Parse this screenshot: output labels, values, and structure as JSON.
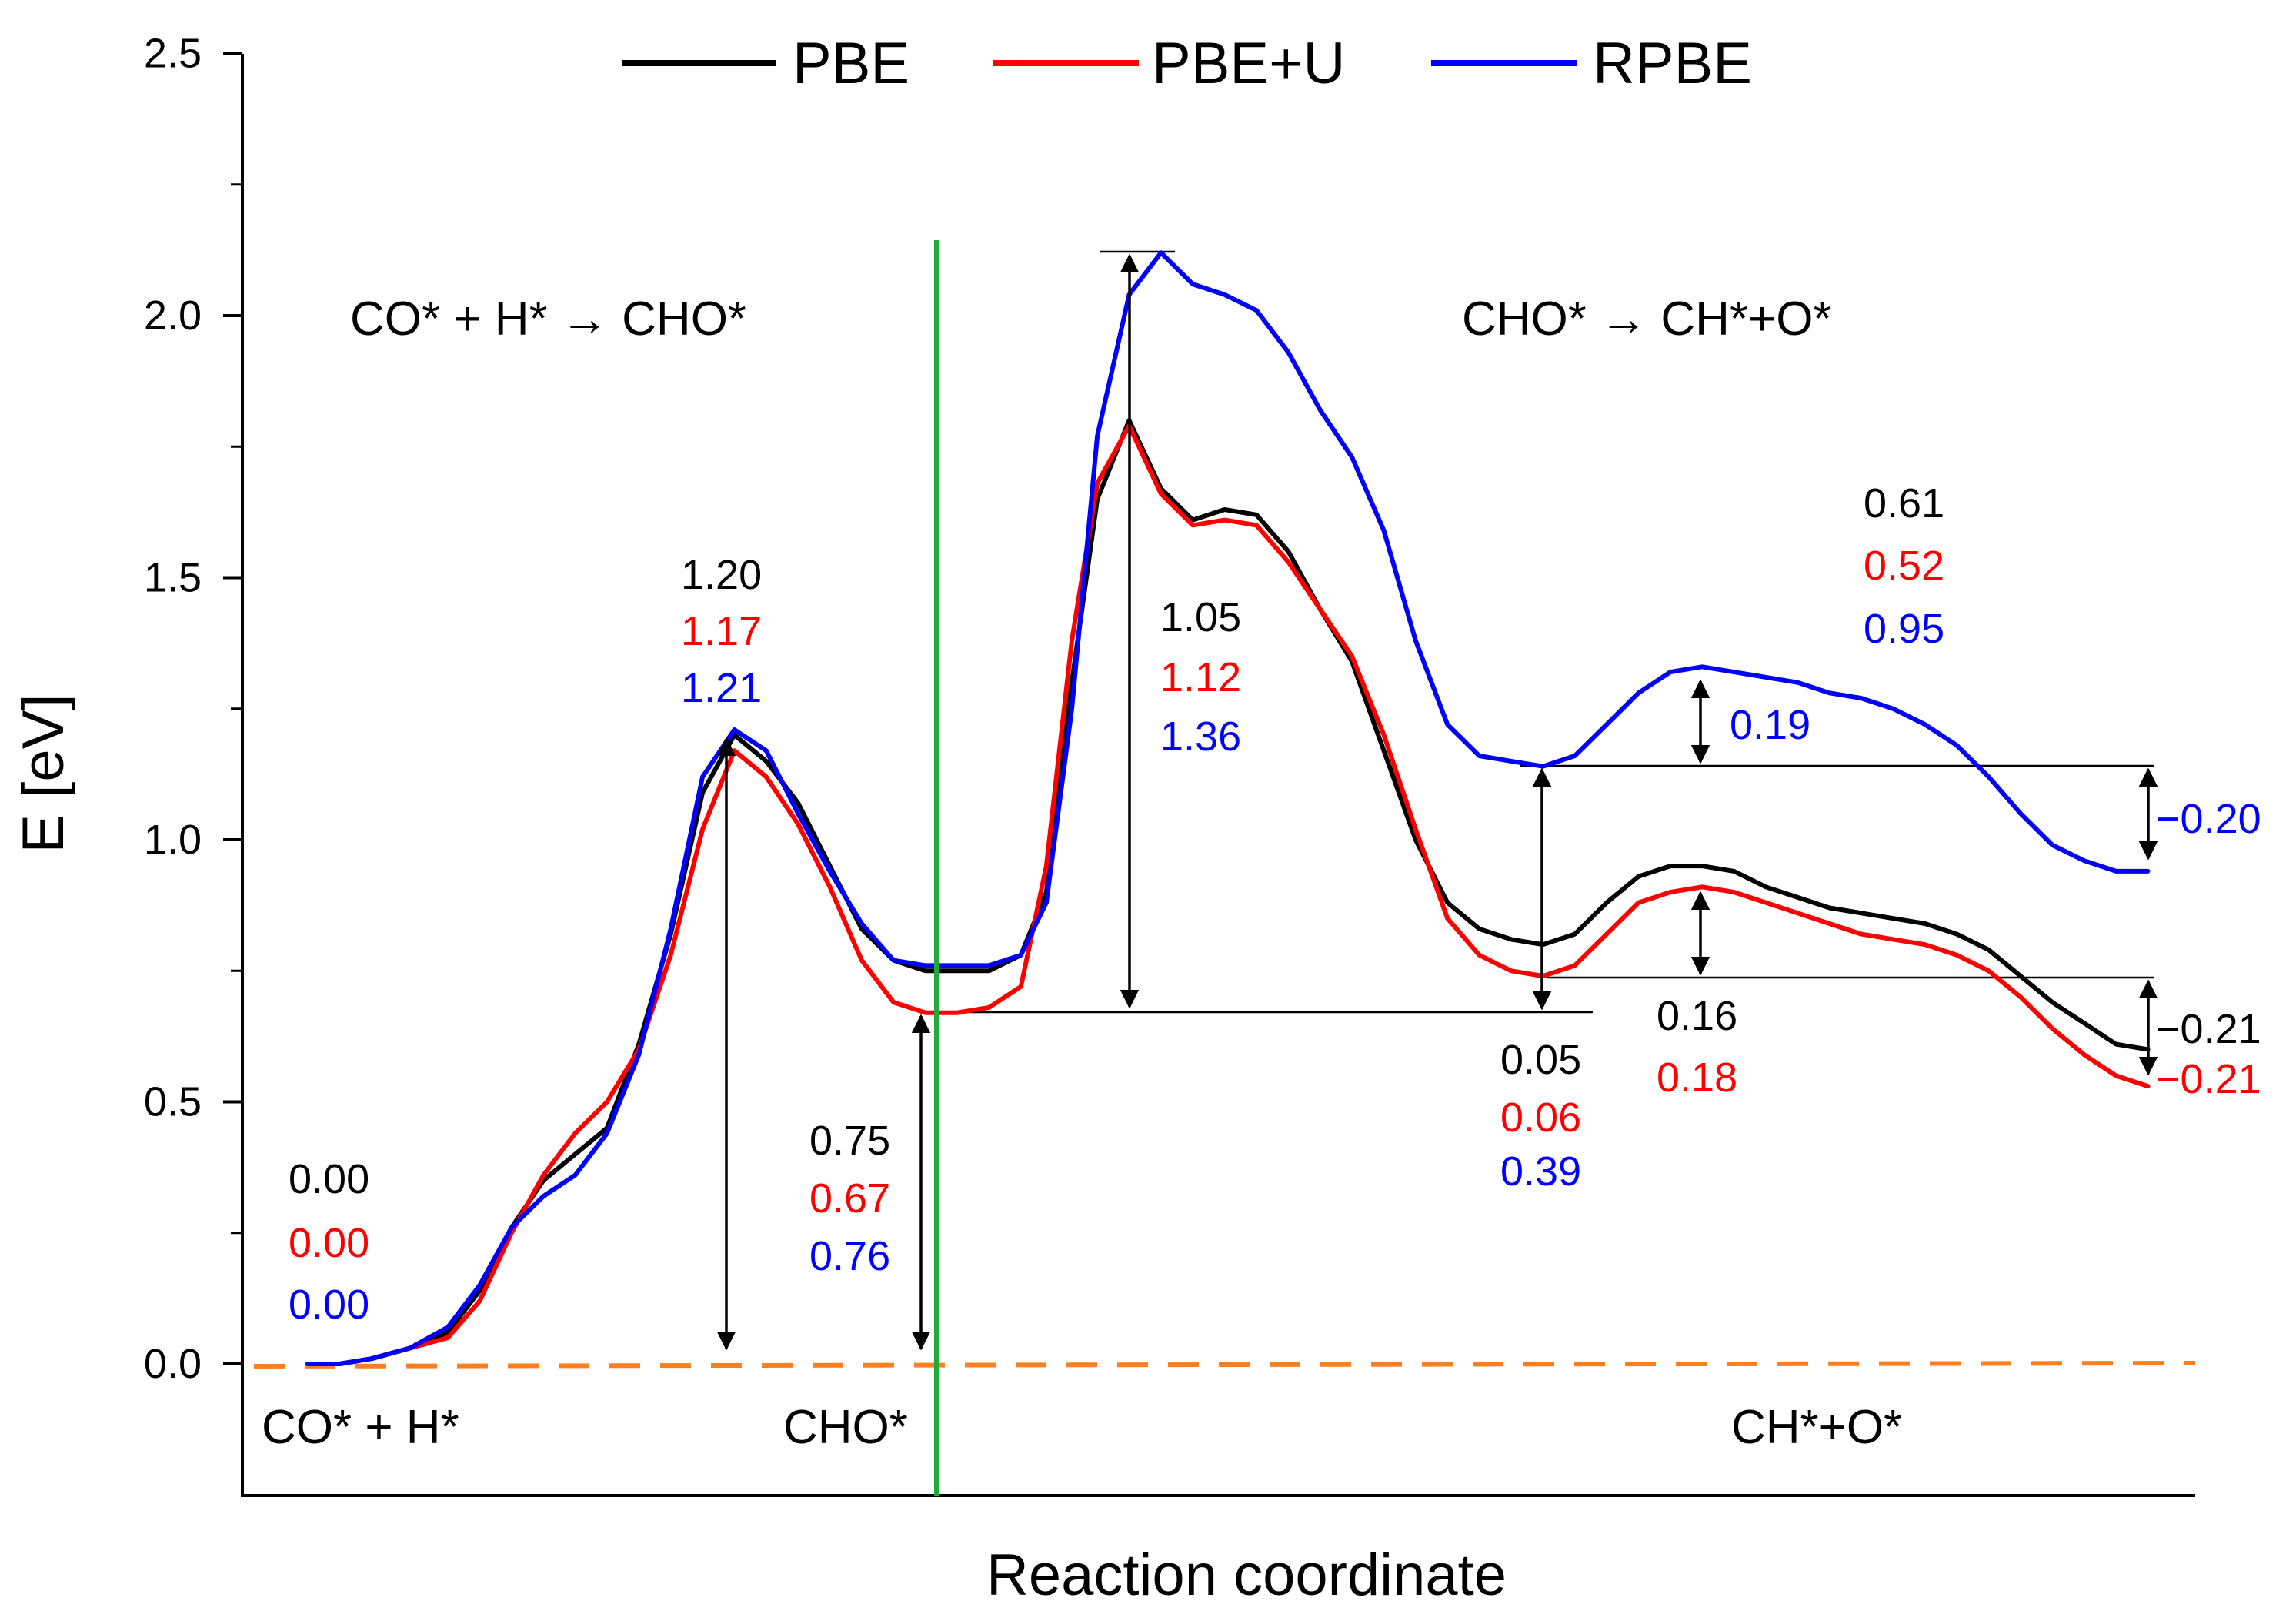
{
  "chart_data": {
    "type": "line",
    "xlabel": "Reaction coordinate",
    "ylabel": "E [eV]",
    "ylim": [
      0,
      2.5
    ],
    "y_ticks": [
      "0.0",
      "0.5",
      "1.0",
      "1.5",
      "2.0",
      "2.5"
    ],
    "legend_position": "top",
    "colors": {
      "PBE": "#000000",
      "PBE+U": "#ff0000",
      "RPBE": "#0000ff",
      "divider": "#1faa3c",
      "zero_line": "#ff7f1e"
    },
    "series": [
      {
        "name": "PBE",
        "color": "#000000",
        "points": [
          [
            0.0,
            0.0
          ],
          [
            0.25,
            0.0
          ],
          [
            0.5,
            0.01
          ],
          [
            0.8,
            0.03
          ],
          [
            1.1,
            0.06
          ],
          [
            1.35,
            0.14
          ],
          [
            1.6,
            0.26
          ],
          [
            1.85,
            0.35
          ],
          [
            2.1,
            0.4
          ],
          [
            2.35,
            0.45
          ],
          [
            2.6,
            0.61
          ],
          [
            2.85,
            0.82
          ],
          [
            3.1,
            1.09
          ],
          [
            3.35,
            1.2
          ],
          [
            3.6,
            1.15
          ],
          [
            3.85,
            1.07
          ],
          [
            4.1,
            0.95
          ],
          [
            4.35,
            0.83
          ],
          [
            4.6,
            0.77
          ],
          [
            4.85,
            0.75
          ],
          [
            5.1,
            0.75
          ],
          [
            5.35,
            0.75
          ],
          [
            5.6,
            0.78
          ],
          [
            5.8,
            0.9
          ],
          [
            6.0,
            1.3
          ],
          [
            6.2,
            1.65
          ],
          [
            6.45,
            1.8
          ],
          [
            6.7,
            1.67
          ],
          [
            6.95,
            1.61
          ],
          [
            7.2,
            1.63
          ],
          [
            7.45,
            1.62
          ],
          [
            7.7,
            1.55
          ],
          [
            7.95,
            1.44
          ],
          [
            8.2,
            1.34
          ],
          [
            8.45,
            1.17
          ],
          [
            8.7,
            1.0
          ],
          [
            8.95,
            0.88
          ],
          [
            9.2,
            0.83
          ],
          [
            9.45,
            0.81
          ],
          [
            9.7,
            0.8
          ],
          [
            9.95,
            0.82
          ],
          [
            10.2,
            0.88
          ],
          [
            10.45,
            0.93
          ],
          [
            10.7,
            0.95
          ],
          [
            10.95,
            0.95
          ],
          [
            11.2,
            0.94
          ],
          [
            11.45,
            0.91
          ],
          [
            11.7,
            0.89
          ],
          [
            11.95,
            0.87
          ],
          [
            12.2,
            0.86
          ],
          [
            12.45,
            0.85
          ],
          [
            12.7,
            0.84
          ],
          [
            12.95,
            0.82
          ],
          [
            13.2,
            0.79
          ],
          [
            13.45,
            0.74
          ],
          [
            13.7,
            0.69
          ],
          [
            13.95,
            0.65
          ],
          [
            14.2,
            0.61
          ],
          [
            14.45,
            0.6
          ]
        ]
      },
      {
        "name": "PBE+U",
        "color": "#ff0000",
        "points": [
          [
            0.0,
            0.0
          ],
          [
            0.25,
            0.0
          ],
          [
            0.5,
            0.01
          ],
          [
            0.8,
            0.03
          ],
          [
            1.1,
            0.05
          ],
          [
            1.35,
            0.12
          ],
          [
            1.6,
            0.25
          ],
          [
            1.85,
            0.36
          ],
          [
            2.1,
            0.44
          ],
          [
            2.35,
            0.5
          ],
          [
            2.6,
            0.6
          ],
          [
            2.85,
            0.78
          ],
          [
            3.1,
            1.02
          ],
          [
            3.35,
            1.17
          ],
          [
            3.6,
            1.12
          ],
          [
            3.85,
            1.03
          ],
          [
            4.1,
            0.91
          ],
          [
            4.35,
            0.77
          ],
          [
            4.6,
            0.69
          ],
          [
            4.85,
            0.67
          ],
          [
            5.1,
            0.67
          ],
          [
            5.35,
            0.68
          ],
          [
            5.6,
            0.72
          ],
          [
            5.8,
            0.95
          ],
          [
            6.0,
            1.38
          ],
          [
            6.2,
            1.68
          ],
          [
            6.45,
            1.79
          ],
          [
            6.7,
            1.66
          ],
          [
            6.95,
            1.6
          ],
          [
            7.2,
            1.61
          ],
          [
            7.45,
            1.6
          ],
          [
            7.7,
            1.53
          ],
          [
            7.95,
            1.44
          ],
          [
            8.2,
            1.35
          ],
          [
            8.45,
            1.2
          ],
          [
            8.7,
            1.02
          ],
          [
            8.95,
            0.85
          ],
          [
            9.2,
            0.78
          ],
          [
            9.45,
            0.75
          ],
          [
            9.7,
            0.74
          ],
          [
            9.95,
            0.76
          ],
          [
            10.2,
            0.82
          ],
          [
            10.45,
            0.88
          ],
          [
            10.7,
            0.9
          ],
          [
            10.95,
            0.91
          ],
          [
            11.2,
            0.9
          ],
          [
            11.45,
            0.88
          ],
          [
            11.7,
            0.86
          ],
          [
            11.95,
            0.84
          ],
          [
            12.2,
            0.82
          ],
          [
            12.45,
            0.81
          ],
          [
            12.7,
            0.8
          ],
          [
            12.95,
            0.78
          ],
          [
            13.2,
            0.75
          ],
          [
            13.45,
            0.7
          ],
          [
            13.7,
            0.64
          ],
          [
            13.95,
            0.59
          ],
          [
            14.2,
            0.55
          ],
          [
            14.45,
            0.53
          ]
        ]
      },
      {
        "name": "RPBE",
        "color": "#0000ff",
        "points": [
          [
            0.0,
            0.0
          ],
          [
            0.25,
            0.0
          ],
          [
            0.5,
            0.01
          ],
          [
            0.8,
            0.03
          ],
          [
            1.1,
            0.07
          ],
          [
            1.35,
            0.15
          ],
          [
            1.6,
            0.26
          ],
          [
            1.85,
            0.32
          ],
          [
            2.1,
            0.36
          ],
          [
            2.35,
            0.44
          ],
          [
            2.6,
            0.59
          ],
          [
            2.85,
            0.83
          ],
          [
            3.1,
            1.12
          ],
          [
            3.35,
            1.21
          ],
          [
            3.6,
            1.17
          ],
          [
            3.85,
            1.05
          ],
          [
            4.1,
            0.94
          ],
          [
            4.35,
            0.84
          ],
          [
            4.6,
            0.77
          ],
          [
            4.85,
            0.76
          ],
          [
            5.1,
            0.76
          ],
          [
            5.35,
            0.76
          ],
          [
            5.6,
            0.78
          ],
          [
            5.8,
            0.88
          ],
          [
            6.0,
            1.25
          ],
          [
            6.2,
            1.77
          ],
          [
            6.45,
            2.04
          ],
          [
            6.7,
            2.12
          ],
          [
            6.95,
            2.06
          ],
          [
            7.2,
            2.04
          ],
          [
            7.45,
            2.01
          ],
          [
            7.7,
            1.93
          ],
          [
            7.95,
            1.82
          ],
          [
            8.2,
            1.73
          ],
          [
            8.45,
            1.59
          ],
          [
            8.7,
            1.38
          ],
          [
            8.95,
            1.22
          ],
          [
            9.2,
            1.16
          ],
          [
            9.45,
            1.15
          ],
          [
            9.7,
            1.14
          ],
          [
            9.95,
            1.16
          ],
          [
            10.2,
            1.22
          ],
          [
            10.45,
            1.28
          ],
          [
            10.7,
            1.32
          ],
          [
            10.95,
            1.33
          ],
          [
            11.2,
            1.32
          ],
          [
            11.45,
            1.31
          ],
          [
            11.7,
            1.3
          ],
          [
            11.95,
            1.28
          ],
          [
            12.2,
            1.27
          ],
          [
            12.45,
            1.25
          ],
          [
            12.7,
            1.22
          ],
          [
            12.95,
            1.18
          ],
          [
            13.2,
            1.12
          ],
          [
            13.45,
            1.05
          ],
          [
            13.7,
            0.99
          ],
          [
            13.95,
            0.96
          ],
          [
            14.2,
            0.94
          ],
          [
            14.45,
            0.94
          ]
        ]
      }
    ],
    "section_titles": {
      "left": "CO* + H* → CHO*",
      "right": "CHO* → CH*+O*"
    },
    "state_labels": {
      "initial": "CO* + H*",
      "intermediate": "CHO*",
      "final": "CH*+O*"
    },
    "value_labels": {
      "initial": [
        "0.00",
        "0.00",
        "0.00"
      ],
      "barrier1": [
        "1.20",
        "1.17",
        "1.21"
      ],
      "cho_energy": [
        "0.75",
        "0.67",
        "0.76"
      ],
      "barrier2": [
        "1.05",
        "1.12",
        "1.36"
      ],
      "intermediate_step": [
        "0.05",
        "0.06",
        "0.39"
      ],
      "barrier3_black_red": [
        "0.61",
        "0.52",
        "0.95"
      ],
      "blue_small": "0.19",
      "blue_final": "−0.20",
      "black_red_small": [
        "0.16",
        "0.18"
      ],
      "black_red_final": [
        "−0.21",
        "−0.21"
      ]
    }
  }
}
